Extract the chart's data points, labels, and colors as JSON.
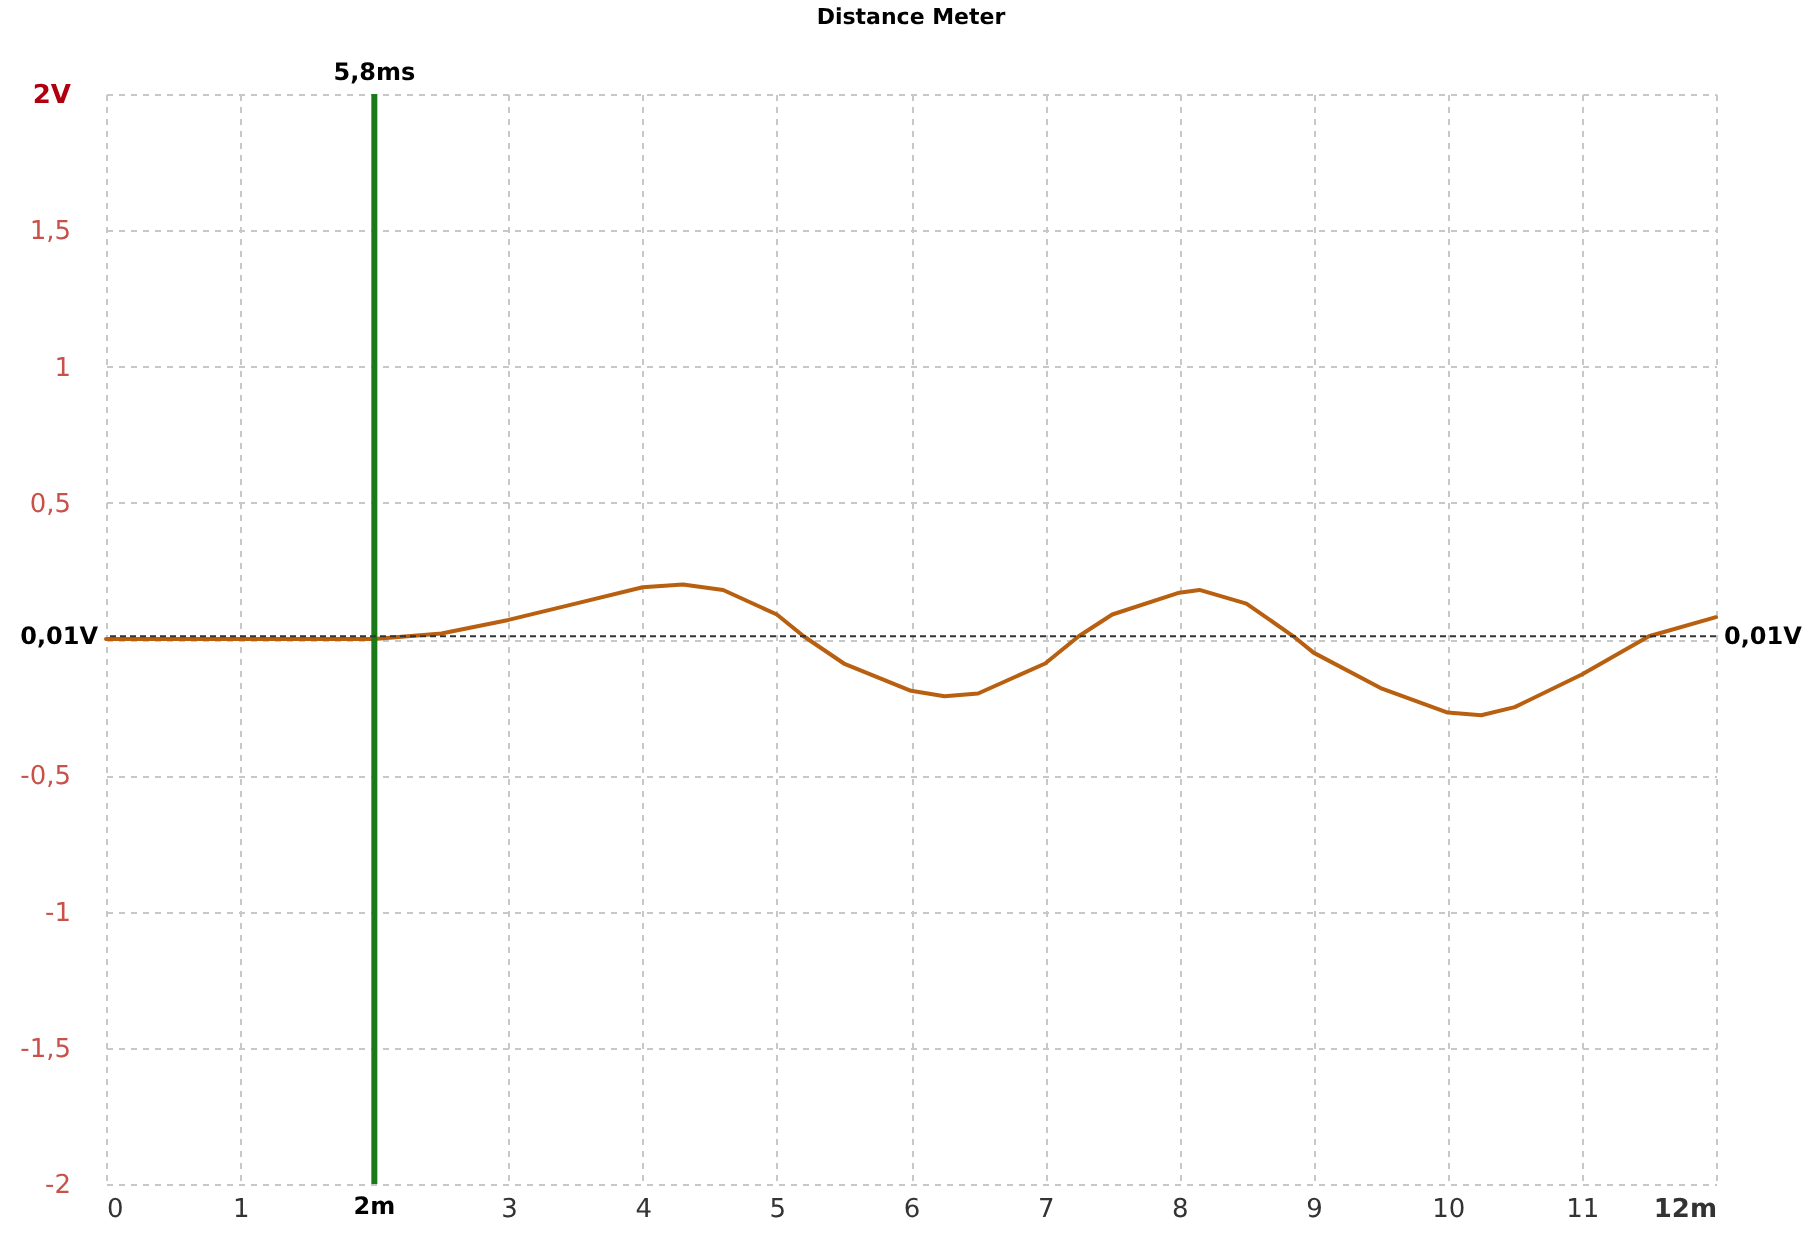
{
  "chart_data": {
    "type": "line",
    "title": "Distance Meter",
    "x": [
      0,
      0.5,
      1,
      1.5,
      2,
      2.5,
      3,
      3.5,
      4,
      4.3,
      4.6,
      5,
      5.2,
      5.5,
      6,
      6.25,
      6.5,
      7,
      7.25,
      7.5,
      8,
      8.15,
      8.5,
      8.85,
      9,
      9.5,
      10,
      10.25,
      10.5,
      11,
      11.5,
      12
    ],
    "series": [
      {
        "color": "#b8600f",
        "values": [
          0,
          0,
          0,
          0,
          0,
          0.02,
          0.07,
          0.13,
          0.19,
          0.2,
          0.18,
          0.09,
          0.01,
          -0.09,
          -0.19,
          -0.21,
          -0.2,
          -0.09,
          0.01,
          0.09,
          0.17,
          0.18,
          0.13,
          0.01,
          -0.05,
          -0.18,
          -0.27,
          -0.28,
          -0.25,
          -0.13,
          0.01,
          0.08
        ]
      }
    ],
    "xlim": [
      0,
      12
    ],
    "xticks": [
      0,
      1,
      {
        "value": 2,
        "label": null
      },
      3,
      4,
      5,
      6,
      7,
      8,
      9,
      10,
      11,
      {
        "value": 12,
        "label": "12m"
      }
    ],
    "ylim": [
      -2,
      2
    ],
    "yticks": [
      {
        "value": -2,
        "label": "-2"
      },
      {
        "value": -1.5,
        "label": "-1,5"
      },
      {
        "value": -1,
        "label": "-1"
      },
      {
        "value": -0.5,
        "label": "-0,5"
      },
      {
        "value": 0,
        "label": null
      },
      {
        "value": 0.5,
        "label": "0,5"
      },
      {
        "value": 1,
        "label": "1"
      },
      {
        "value": 1.5,
        "label": "1,5"
      },
      {
        "value": 2,
        "label": "2V"
      }
    ],
    "grid": true,
    "marker": "none",
    "line_style": "solid",
    "ref_lines": [
      {
        "axis": "x",
        "value": 2,
        "label": "2m",
        "color": "#1a7a1a",
        "line_style": "solid"
      },
      {
        "axis": "y",
        "value": 0.01,
        "label": "0,01V",
        "color": "#333333",
        "line_style": "dashed"
      }
    ],
    "annotations": [
      {
        "text": "5,8ms",
        "x": 2,
        "y": 2
      }
    ]
  }
}
